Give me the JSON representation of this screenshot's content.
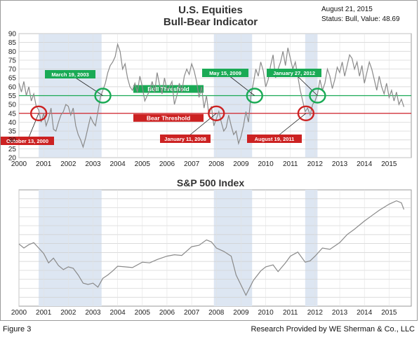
{
  "footer": {
    "figure_label": "Figure 3",
    "credit": "Research Provided by WE Sherman & Co., LLC"
  },
  "colors": {
    "bull_line": "#1aaa55",
    "bear_line": "#d0222a",
    "recession_shade": "#dde6f2",
    "series_line": "#8a8a8a",
    "bull_label_bg": "#1aaa55",
    "bear_label_bg": "#cc2222"
  },
  "chart_data": [
    {
      "type": "line",
      "title": "U.S. Equities",
      "subtitle": "Bull-Bear Indicator",
      "info": [
        "August 21, 2015",
        "Status: Bull, Value: 48.69"
      ],
      "ylim": [
        20,
        90
      ],
      "yticks": [
        20,
        25,
        30,
        35,
        40,
        45,
        50,
        55,
        60,
        65,
        70,
        75,
        80,
        85,
        90
      ],
      "xlim": [
        2000,
        2015.9
      ],
      "xticks": [
        "2000",
        "2001",
        "2002",
        "2003",
        "2004",
        "2005",
        "2006",
        "2007",
        "2008",
        "2009",
        "2010",
        "2011",
        "2012",
        "2013",
        "2014",
        "2015"
      ],
      "grid": true,
      "thresholds": [
        {
          "name": "Bull Threshold",
          "value": 55,
          "color": "#1aaa55"
        },
        {
          "name": "Bear Threshold",
          "value": 45,
          "color": "#d0222a"
        }
      ],
      "shaded_periods": [
        [
          2000.8,
          2003.35
        ],
        [
          2007.9,
          2009.45
        ],
        [
          2011.6,
          2012.1
        ]
      ],
      "annotations": [
        {
          "label": "October 13, 2000",
          "x": 2000.8,
          "y": 45,
          "type": "bear"
        },
        {
          "label": "March 19, 2003",
          "x": 2003.4,
          "y": 55,
          "type": "bull"
        },
        {
          "label": "January 11, 2008",
          "x": 2008.0,
          "y": 45,
          "type": "bear"
        },
        {
          "label": "May 15, 2009",
          "x": 2009.55,
          "y": 55,
          "type": "bull"
        },
        {
          "label": "August 19, 2011",
          "x": 2011.63,
          "y": 45,
          "type": "bear"
        },
        {
          "label": "January 27, 2012",
          "x": 2012.1,
          "y": 55,
          "type": "bull"
        }
      ],
      "series": [
        {
          "x": [
            2000.0,
            2000.1,
            2000.2,
            2000.3,
            2000.4,
            2000.5,
            2000.6,
            2000.7,
            2000.8,
            2000.9,
            2001.0,
            2001.1,
            2001.2,
            2001.3,
            2001.4,
            2001.5,
            2001.6,
            2001.7,
            2001.8,
            2001.9,
            2002.0,
            2002.1,
            2002.2,
            2002.3,
            2002.4,
            2002.5,
            2002.6,
            2002.7,
            2002.8,
            2002.9,
            2003.0,
            2003.1,
            2003.2,
            2003.3,
            2003.4,
            2003.5,
            2003.6,
            2003.7,
            2003.8,
            2003.9,
            2004.0,
            2004.1,
            2004.2,
            2004.3,
            2004.4,
            2004.5,
            2004.6,
            2004.7,
            2004.8,
            2004.9,
            2005.0,
            2005.1,
            2005.2,
            2005.3,
            2005.4,
            2005.5,
            2005.6,
            2005.7,
            2005.8,
            2005.9,
            2006.0,
            2006.1,
            2006.2,
            2006.3,
            2006.4,
            2006.5,
            2006.6,
            2006.7,
            2006.8,
            2006.9,
            2007.0,
            2007.1,
            2007.2,
            2007.3,
            2007.4,
            2007.5,
            2007.6,
            2007.7,
            2007.8,
            2007.9,
            2008.0,
            2008.1,
            2008.2,
            2008.3,
            2008.4,
            2008.5,
            2008.6,
            2008.7,
            2008.8,
            2008.9,
            2009.0,
            2009.1,
            2009.2,
            2009.3,
            2009.4,
            2009.5,
            2009.6,
            2009.7,
            2009.8,
            2009.9,
            2010.0,
            2010.1,
            2010.2,
            2010.3,
            2010.4,
            2010.5,
            2010.6,
            2010.7,
            2010.8,
            2010.9,
            2011.0,
            2011.1,
            2011.2,
            2011.3,
            2011.4,
            2011.5,
            2011.6,
            2011.7,
            2011.8,
            2011.9,
            2012.0,
            2012.1,
            2012.2,
            2012.3,
            2012.4,
            2012.5,
            2012.6,
            2012.7,
            2012.8,
            2012.9,
            2013.0,
            2013.1,
            2013.2,
            2013.3,
            2013.4,
            2013.5,
            2013.6,
            2013.7,
            2013.8,
            2013.9,
            2014.0,
            2014.1,
            2014.2,
            2014.3,
            2014.4,
            2014.5,
            2014.6,
            2014.7,
            2014.8,
            2014.9,
            2015.0,
            2015.1,
            2015.2,
            2015.3,
            2015.4,
            2015.5,
            2015.6
          ],
          "y": [
            62,
            57,
            63,
            55,
            60,
            52,
            56,
            49,
            47,
            40,
            45,
            38,
            42,
            48,
            36,
            35,
            40,
            44,
            46,
            50,
            49,
            44,
            48,
            38,
            33,
            30,
            26,
            31,
            37,
            43,
            40,
            38,
            46,
            54,
            58,
            62,
            68,
            72,
            74,
            77,
            84,
            80,
            70,
            73,
            65,
            60,
            58,
            62,
            57,
            66,
            60,
            52,
            55,
            58,
            63,
            57,
            68,
            61,
            56,
            65,
            58,
            60,
            63,
            50,
            55,
            62,
            57,
            66,
            70,
            67,
            73,
            69,
            63,
            54,
            60,
            48,
            55,
            44,
            49,
            38,
            42,
            46,
            40,
            35,
            37,
            44,
            38,
            33,
            35,
            28,
            32,
            38,
            46,
            40,
            55,
            62,
            70,
            66,
            74,
            69,
            60,
            64,
            72,
            78,
            65,
            70,
            74,
            80,
            72,
            82,
            76,
            70,
            74,
            66,
            58,
            52,
            46,
            48,
            44,
            50,
            52,
            56,
            64,
            58,
            62,
            70,
            66,
            59,
            64,
            71,
            68,
            74,
            66,
            72,
            78,
            76,
            70,
            74,
            66,
            72,
            62,
            68,
            74,
            70,
            64,
            58,
            66,
            60,
            56,
            62,
            54,
            58,
            52,
            57,
            50,
            53,
            48.69
          ]
        }
      ]
    },
    {
      "type": "line",
      "title": "S&P 500 Index",
      "xlim": [
        2000,
        2015.9
      ],
      "xticks": [
        "2000",
        "2001",
        "2002",
        "2003",
        "2004",
        "2005",
        "2006",
        "2007",
        "2008",
        "2009",
        "2010",
        "2011",
        "2012",
        "2013",
        "2014",
        "2015"
      ],
      "grid": true,
      "shaded_periods": [
        [
          2000.8,
          2003.35
        ],
        [
          2007.9,
          2009.45
        ],
        [
          2011.6,
          2012.1
        ]
      ],
      "ylim": [
        600,
        2200
      ],
      "series": [
        {
          "x": [
            2000.0,
            2000.2,
            2000.4,
            2000.6,
            2000.8,
            2001.0,
            2001.2,
            2001.4,
            2001.6,
            2001.8,
            2002.0,
            2002.2,
            2002.4,
            2002.6,
            2002.8,
            2003.0,
            2003.2,
            2003.4,
            2003.6,
            2003.8,
            2004.0,
            2004.3,
            2004.6,
            2005.0,
            2005.3,
            2005.6,
            2006.0,
            2006.3,
            2006.6,
            2007.0,
            2007.3,
            2007.6,
            2007.8,
            2008.0,
            2008.3,
            2008.6,
            2008.8,
            2009.0,
            2009.2,
            2009.5,
            2009.8,
            2010.0,
            2010.3,
            2010.5,
            2010.8,
            2011.0,
            2011.3,
            2011.6,
            2011.8,
            2012.0,
            2012.3,
            2012.6,
            2013.0,
            2013.3,
            2013.6,
            2014.0,
            2014.3,
            2014.6,
            2015.0,
            2015.3,
            2015.5,
            2015.6
          ],
          "y": [
            1460,
            1400,
            1450,
            1480,
            1400,
            1320,
            1180,
            1250,
            1140,
            1080,
            1120,
            1100,
            1000,
            880,
            860,
            880,
            820,
            950,
            1000,
            1060,
            1130,
            1120,
            1110,
            1190,
            1180,
            1230,
            1280,
            1300,
            1290,
            1420,
            1440,
            1520,
            1490,
            1400,
            1350,
            1280,
            1000,
            850,
            700,
            920,
            1060,
            1120,
            1150,
            1050,
            1180,
            1280,
            1340,
            1190,
            1210,
            1280,
            1400,
            1380,
            1480,
            1600,
            1680,
            1800,
            1880,
            1960,
            2050,
            2100,
            2070,
            1970
          ]
        }
      ]
    }
  ]
}
